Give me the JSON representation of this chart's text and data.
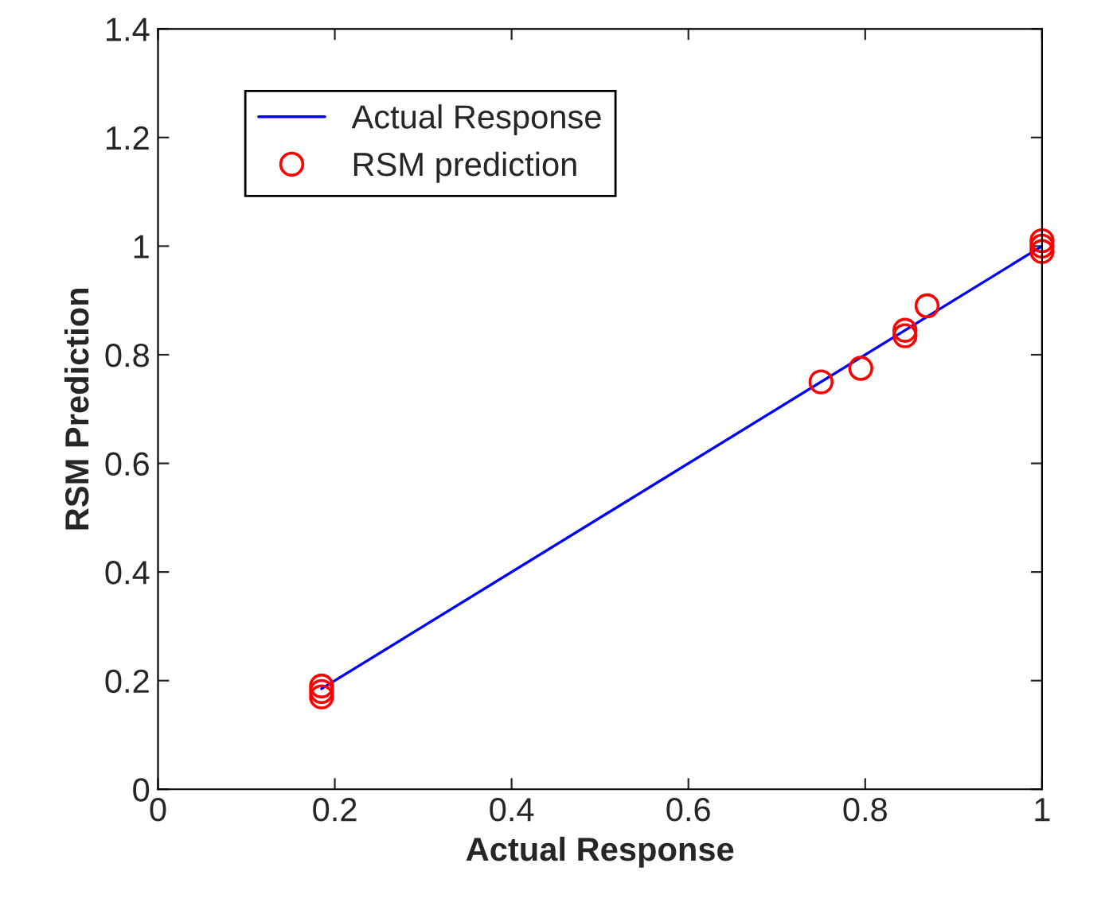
{
  "chart_data": {
    "type": "scatter",
    "xlabel": "Actual Response",
    "ylabel": "RSM Prediction",
    "xlim": [
      0,
      1
    ],
    "ylim": [
      0,
      1.4
    ],
    "xticks": [
      0,
      0.2,
      0.4,
      0.6,
      0.8,
      1
    ],
    "yticks": [
      0,
      0.2,
      0.4,
      0.6,
      0.8,
      1,
      1.2,
      1.4
    ],
    "grid": false,
    "legend": "top left",
    "series": [
      {
        "name": "Actual Response",
        "type": "line",
        "color": "#0000ff",
        "marker": "none",
        "line_style": "solid",
        "x": [
          0.185,
          1
        ],
        "values": [
          0.185,
          1
        ]
      },
      {
        "name": "RSM prediction",
        "color": "#ff0000",
        "marker": "circle",
        "x": [
          0.185,
          0.185,
          0.185,
          0.75,
          0.795,
          0.845,
          0.845,
          0.87,
          1,
          1,
          1
        ],
        "values": [
          0.19,
          0.18,
          0.17,
          0.75,
          0.775,
          0.845,
          0.835,
          0.89,
          1.01,
          1.0,
          0.99
        ]
      }
    ]
  }
}
